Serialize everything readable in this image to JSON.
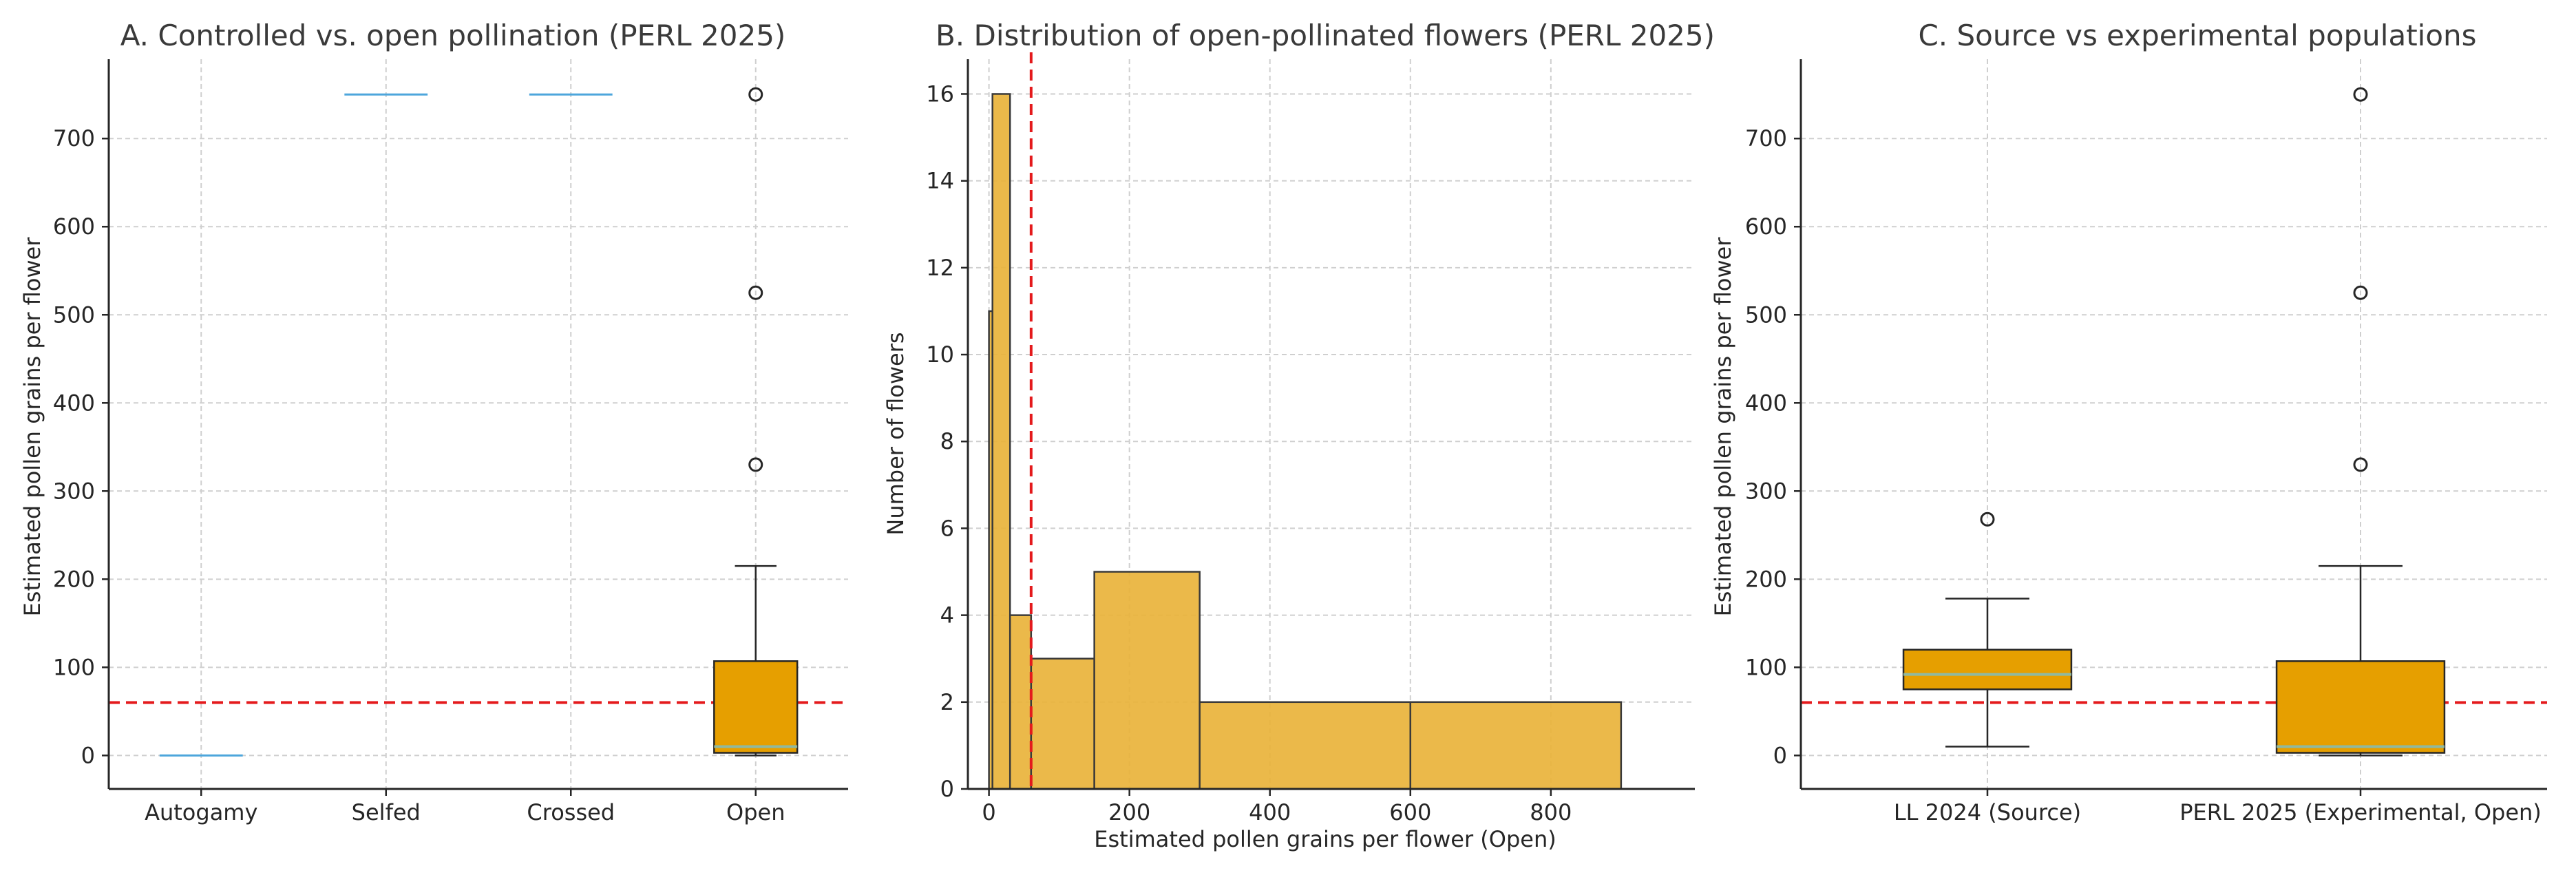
{
  "colors": {
    "box_fill": "#e69f00",
    "hist_fill": "#e9b136",
    "threshold": "#e41a1c",
    "flat_median": "#4da6dc",
    "median": "#8fb9a0"
  },
  "chart_data": [
    {
      "type": "box",
      "title": "A. Controlled vs. open pollination (PERL 2025)",
      "xlabel": "",
      "ylabel": "Estimated pollen grains per flower",
      "ylim": [
        -38,
        790
      ],
      "yticks": [
        0,
        100,
        200,
        300,
        400,
        500,
        600,
        700
      ],
      "grid": true,
      "threshold": 60,
      "categories": [
        "Autogamy",
        "Selfed",
        "Crossed",
        "Open"
      ],
      "boxes": [
        {
          "category": "Autogamy",
          "min": 0,
          "q1": 0,
          "median": 0,
          "q3": 0,
          "max": 0,
          "fliers": []
        },
        {
          "category": "Selfed",
          "min": 750,
          "q1": 750,
          "median": 750,
          "q3": 750,
          "max": 750,
          "fliers": []
        },
        {
          "category": "Crossed",
          "min": 750,
          "q1": 750,
          "median": 750,
          "q3": 750,
          "max": 750,
          "fliers": []
        },
        {
          "category": "Open",
          "min": 0,
          "q1": 3,
          "median": 10,
          "q3": 107,
          "max": 215,
          "fliers": [
            330,
            525,
            750
          ]
        }
      ]
    },
    {
      "type": "bar",
      "title": "B. Distribution of open-pollinated flowers (PERL 2025)",
      "xlabel": "Estimated pollen grains per flower (Open)",
      "ylabel": "Number of flowers",
      "xlim": [
        -30,
        1005
      ],
      "ylim": [
        0,
        16.8
      ],
      "xticks": [
        0,
        200,
        400,
        600,
        800
      ],
      "yticks": [
        0,
        2,
        4,
        6,
        8,
        10,
        12,
        14,
        16
      ],
      "grid": true,
      "threshold": 60,
      "bins": [
        {
          "from": 0,
          "to": 5,
          "count": 11
        },
        {
          "from": 5,
          "to": 30,
          "count": 16
        },
        {
          "from": 30,
          "to": 60,
          "count": 4
        },
        {
          "from": 60,
          "to": 150,
          "count": 3
        },
        {
          "from": 150,
          "to": 300,
          "count": 5
        },
        {
          "from": 300,
          "to": 600,
          "count": 2
        },
        {
          "from": 600,
          "to": 900,
          "count": 2
        }
      ]
    },
    {
      "type": "box",
      "title": "C. Source vs experimental populations",
      "xlabel": "",
      "ylabel": "Estimated pollen grains per flower",
      "ylim": [
        -38,
        790
      ],
      "yticks": [
        0,
        100,
        200,
        300,
        400,
        500,
        600,
        700
      ],
      "grid": true,
      "threshold": 60,
      "categories": [
        "LL 2024 (Source)",
        "PERL 2025 (Experimental, Open)"
      ],
      "boxes": [
        {
          "category": "LL 2024 (Source)",
          "min": 10,
          "q1": 75,
          "median": 92,
          "q3": 120,
          "max": 178,
          "fliers": [
            268
          ]
        },
        {
          "category": "PERL 2025 (Experimental, Open)",
          "min": 0,
          "q1": 3,
          "median": 10,
          "q3": 107,
          "max": 215,
          "fliers": [
            330,
            525,
            750
          ]
        }
      ]
    }
  ]
}
